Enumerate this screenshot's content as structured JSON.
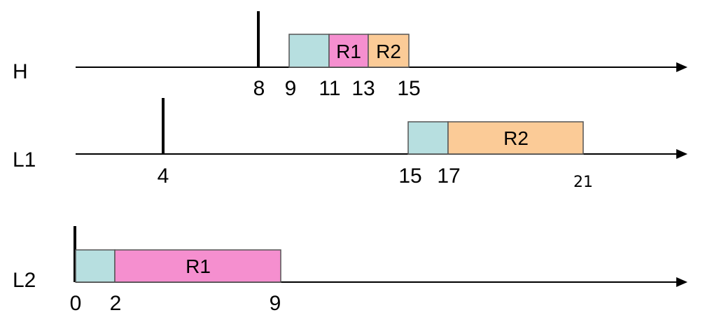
{
  "colors": {
    "setup": "#b7dfe0",
    "R1": "#f58fcf",
    "R2": "#fbcb97",
    "line": "#000000"
  },
  "rows": [
    {
      "label": "H",
      "blocks": [
        {
          "kind": "setup",
          "start": 9,
          "end": 11,
          "label": ""
        },
        {
          "kind": "R1",
          "start": 11,
          "end": 13,
          "label": "R1"
        },
        {
          "kind": "R2",
          "start": 13,
          "end": 15,
          "label": "R2"
        }
      ],
      "release": 8,
      "ticks": [
        "8",
        "9",
        "11",
        "13",
        "15"
      ]
    },
    {
      "label": "L1",
      "blocks": [
        {
          "kind": "setup",
          "start": 15,
          "end": 17,
          "label": ""
        },
        {
          "kind": "R2",
          "start": 17,
          "end": 21,
          "label": "R2"
        }
      ],
      "release": 4,
      "ticks": [
        "4",
        "15",
        "17",
        "21"
      ]
    },
    {
      "label": "L2",
      "blocks": [
        {
          "kind": "setup",
          "start": 0,
          "end": 2,
          "label": ""
        },
        {
          "kind": "R1",
          "start": 2,
          "end": 9,
          "label": "R1"
        }
      ],
      "release": 0,
      "ticks": [
        "0",
        "2",
        "9"
      ]
    }
  ]
}
